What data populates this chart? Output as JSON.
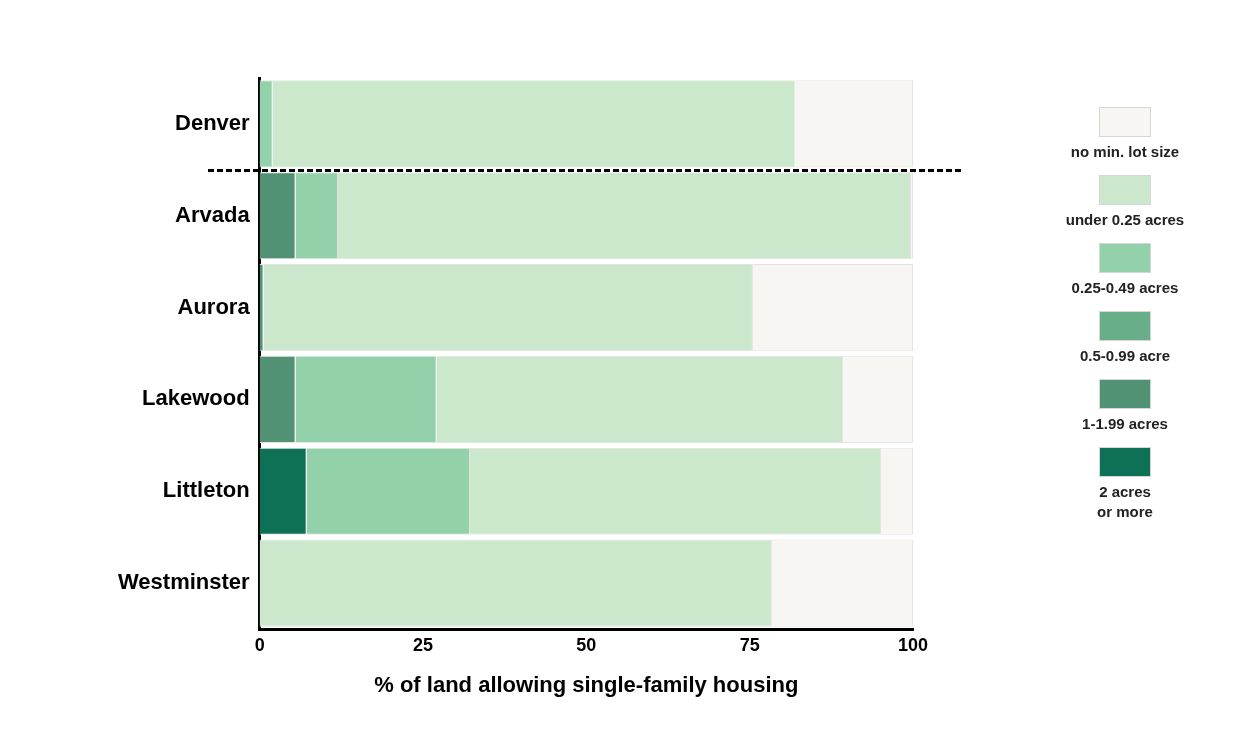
{
  "chart_data": {
    "type": "bar",
    "orientation": "horizontal",
    "stacked": true,
    "xlabel": "% of land allowing single-family housing",
    "categories": [
      "Denver",
      "Arvada",
      "Aurora",
      "Lakewood",
      "Littleton",
      "Westminster"
    ],
    "series": [
      {
        "name": "2 acres\nor more",
        "color": "#0e7054",
        "values": [
          0,
          0,
          0,
          0,
          7.2,
          0
        ]
      },
      {
        "name": "1-1.99 acres",
        "color": "#519174",
        "values": [
          0,
          5.5,
          0.6,
          5.5,
          0,
          0
        ]
      },
      {
        "name": "0.5-0.99 acre",
        "color": "#68ae88",
        "values": [
          0,
          0,
          0,
          0,
          0,
          0
        ]
      },
      {
        "name": "0.25-0.49 acres",
        "color": "#93d1ab",
        "values": [
          2,
          6.5,
          0,
          21.6,
          25,
          0
        ]
      },
      {
        "name": "under 0.25 acres",
        "color": "#cbe8cc",
        "values": [
          80,
          87.7,
          74.9,
          62.2,
          62.9,
          78.4
        ]
      },
      {
        "name": "no min. lot size",
        "color": "#f7f6f2",
        "values": [
          18,
          0.3,
          24.5,
          10.7,
          4.9,
          21.6
        ]
      }
    ],
    "xlim": [
      0,
      100
    ],
    "xticks": [
      0,
      25,
      50,
      75,
      100
    ],
    "grid": false,
    "legend": "right"
  }
}
